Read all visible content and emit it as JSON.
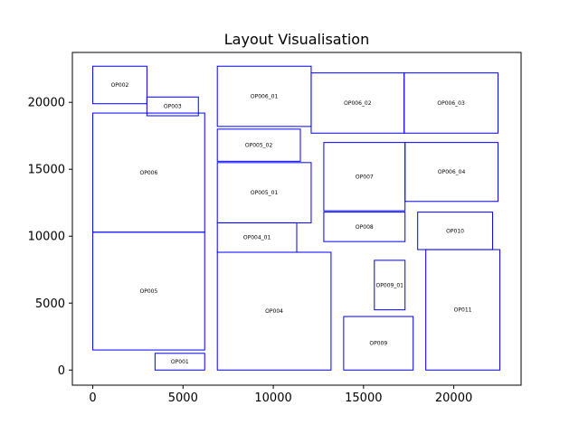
{
  "chart_data": {
    "type": "layout-rectangles",
    "title": "Layout Visualisation",
    "xlabel": "",
    "ylabel": "",
    "xlim": [
      -1130,
      23730
    ],
    "ylim": [
      -1130,
      23730
    ],
    "xticks": [
      0,
      5000,
      10000,
      15000,
      20000
    ],
    "yticks": [
      0,
      5000,
      10000,
      15000,
      20000
    ],
    "grid": false,
    "rectangles": [
      {
        "name": "OP002",
        "x": 0,
        "y": 19900,
        "w": 3000,
        "h": 2800
      },
      {
        "name": "OP003",
        "x": 3000,
        "y": 19000,
        "w": 2850,
        "h": 1400
      },
      {
        "name": "OP006",
        "x": 0,
        "y": 10300,
        "w": 6200,
        "h": 8900
      },
      {
        "name": "OP005",
        "x": 0,
        "y": 1500,
        "w": 6200,
        "h": 8800
      },
      {
        "name": "OP001",
        "x": 3450,
        "y": 0,
        "w": 2750,
        "h": 1250
      },
      {
        "name": "OP006_01",
        "x": 6900,
        "y": 18200,
        "w": 5200,
        "h": 4500
      },
      {
        "name": "OP006_02",
        "x": 12100,
        "y": 17700,
        "w": 5150,
        "h": 4500
      },
      {
        "name": "OP006_03",
        "x": 17250,
        "y": 17700,
        "w": 5200,
        "h": 4500
      },
      {
        "name": "OP005_02",
        "x": 6900,
        "y": 15600,
        "w": 4600,
        "h": 2400
      },
      {
        "name": "OP005_01",
        "x": 6900,
        "y": 11000,
        "w": 5200,
        "h": 4500
      },
      {
        "name": "OP007",
        "x": 12800,
        "y": 11900,
        "w": 4500,
        "h": 5100
      },
      {
        "name": "OP006_04",
        "x": 17300,
        "y": 12600,
        "w": 5150,
        "h": 4400
      },
      {
        "name": "OP004_01",
        "x": 6900,
        "y": 8800,
        "w": 4400,
        "h": 2200
      },
      {
        "name": "OP008",
        "x": 12800,
        "y": 9600,
        "w": 4500,
        "h": 2200
      },
      {
        "name": "OP010",
        "x": 18000,
        "y": 9000,
        "w": 4150,
        "h": 2800
      },
      {
        "name": "OP004",
        "x": 6900,
        "y": 0,
        "w": 6300,
        "h": 8800
      },
      {
        "name": "OP009_01",
        "x": 15600,
        "y": 4500,
        "w": 1700,
        "h": 3700
      },
      {
        "name": "OP011",
        "x": 18450,
        "y": 0,
        "w": 4100,
        "h": 9000
      },
      {
        "name": "OP009",
        "x": 13900,
        "y": 0,
        "w": 3850,
        "h": 4000
      }
    ]
  }
}
